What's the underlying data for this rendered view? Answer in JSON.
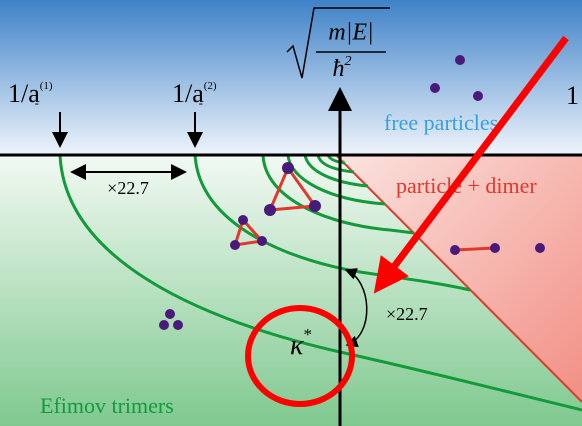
{
  "axis_label": {
    "numerator": "m|E|",
    "denominator": "ħ",
    "denominator_power": "2"
  },
  "thresholds": [
    {
      "base": "1/a",
      "sub": "-",
      "sup": "(1)"
    },
    {
      "base": "1/a",
      "sub": "-",
      "sup": "(2)"
    }
  ],
  "edge_label": "1",
  "regions": {
    "top": "free particles",
    "right": "particle + dimer",
    "bottom": "Efimov trimers"
  },
  "scaling": {
    "horizontal": "×22.7",
    "vertical": "×22.7"
  },
  "kappa": {
    "base": "κ",
    "sup": "*"
  }
}
